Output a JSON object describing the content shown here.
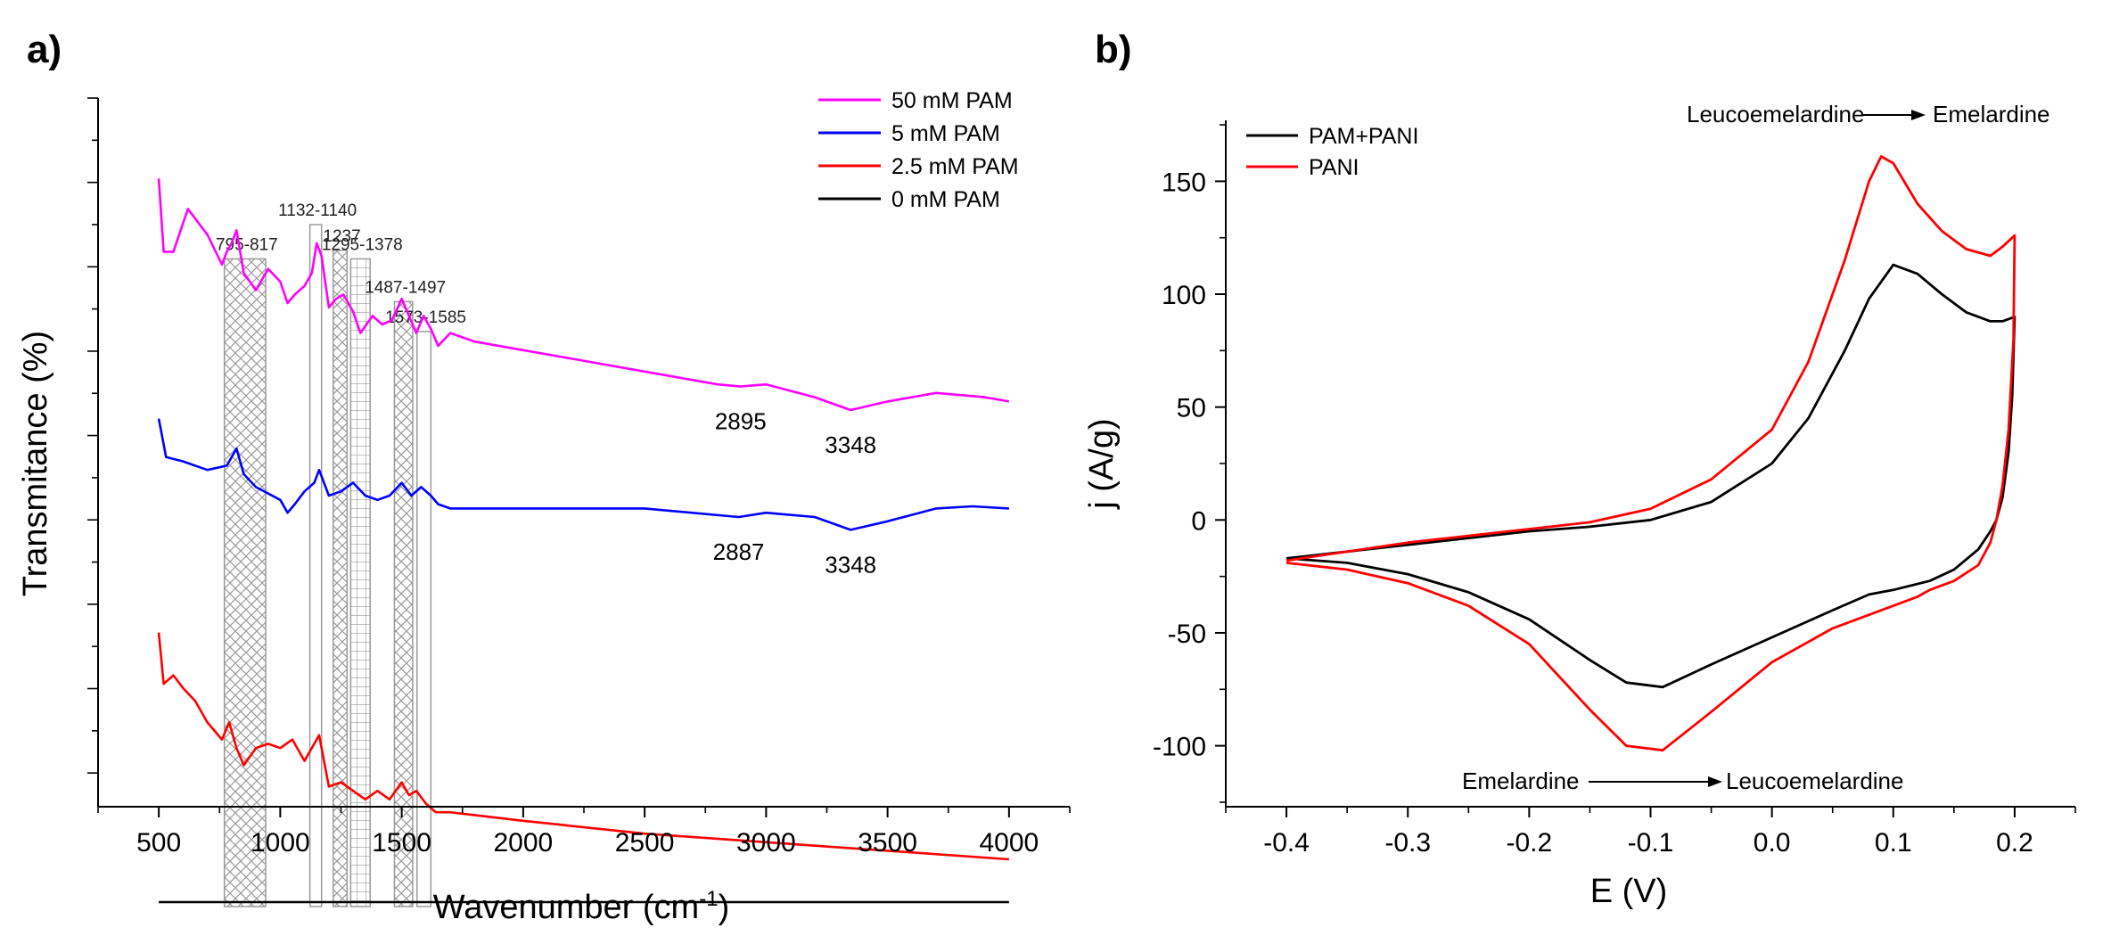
{
  "chart_data": [
    {
      "panel_label": "a)",
      "type": "line",
      "title": "",
      "xlabel": "Wavenumber (cm",
      "xlabel_sup": "-1",
      "xlabel_end": ")",
      "ylabel": "Transmitance (%)",
      "xlim": [
        250,
        4250
      ],
      "xticks": [
        500,
        1000,
        1500,
        2000,
        2500,
        3000,
        3500,
        4000
      ],
      "ytick_labels_shown": false,
      "grid": false,
      "legend": {
        "placement": "top-right",
        "entries": [
          {
            "label": "50 mM PAM",
            "color": "#ff00ff"
          },
          {
            "label": "5 mM PAM",
            "color": "#0000ff"
          },
          {
            "label": "2.5 mM PAM",
            "color": "#ff0000"
          },
          {
            "label": "0 mM PAM",
            "color": "#000000"
          }
        ]
      },
      "series": [
        {
          "name": "50 mM PAM",
          "color": "#ff00ff",
          "offset_pct": 0,
          "points": [
            [
              500,
              5.9
            ],
            [
              520,
              23
            ],
            [
              560,
              23
            ],
            [
              620,
              13
            ],
            [
              700,
              19
            ],
            [
              760,
              26
            ],
            [
              780,
              23
            ],
            [
              800,
              21
            ],
            [
              820,
              18
            ],
            [
              850,
              28
            ],
            [
              900,
              32
            ],
            [
              950,
              27
            ],
            [
              1000,
              30
            ],
            [
              1030,
              35
            ],
            [
              1060,
              33
            ],
            [
              1100,
              31
            ],
            [
              1130,
              28
            ],
            [
              1150,
              21
            ],
            [
              1170,
              24
            ],
            [
              1200,
              36
            ],
            [
              1230,
              34
            ],
            [
              1260,
              33
            ],
            [
              1300,
              37
            ],
            [
              1330,
              42
            ],
            [
              1380,
              38
            ],
            [
              1420,
              40
            ],
            [
              1460,
              39
            ],
            [
              1500,
              34
            ],
            [
              1530,
              38
            ],
            [
              1560,
              42
            ],
            [
              1590,
              38
            ],
            [
              1620,
              41
            ],
            [
              1650,
              45
            ],
            [
              1700,
              42
            ],
            [
              1800,
              44
            ],
            [
              2000,
              46
            ],
            [
              2200,
              48
            ],
            [
              2500,
              51
            ],
            [
              2800,
              54
            ],
            [
              2895,
              54.5
            ],
            [
              3000,
              54
            ],
            [
              3200,
              57
            ],
            [
              3348,
              60
            ],
            [
              3500,
              58
            ],
            [
              3700,
              56
            ],
            [
              3900,
              57
            ],
            [
              4000,
              58
            ]
          ]
        },
        {
          "name": "5 mM PAM",
          "color": "#0000ff",
          "offset_pct": 0,
          "points": [
            [
              500,
              62
            ],
            [
              530,
              71
            ],
            [
              600,
              72
            ],
            [
              700,
              74
            ],
            [
              780,
              73
            ],
            [
              820,
              69
            ],
            [
              850,
              75
            ],
            [
              900,
              78
            ],
            [
              1000,
              81
            ],
            [
              1030,
              84
            ],
            [
              1060,
              82
            ],
            [
              1100,
              79
            ],
            [
              1140,
              77
            ],
            [
              1160,
              74
            ],
            [
              1200,
              80
            ],
            [
              1250,
              79
            ],
            [
              1300,
              77
            ],
            [
              1350,
              80
            ],
            [
              1400,
              81
            ],
            [
              1450,
              80
            ],
            [
              1500,
              77
            ],
            [
              1540,
              80
            ],
            [
              1580,
              78
            ],
            [
              1620,
              80
            ],
            [
              1650,
              82
            ],
            [
              1700,
              83
            ],
            [
              2000,
              83
            ],
            [
              2500,
              83
            ],
            [
              2887,
              85
            ],
            [
              3000,
              84
            ],
            [
              3200,
              85
            ],
            [
              3348,
              88
            ],
            [
              3500,
              86
            ],
            [
              3700,
              83
            ],
            [
              3850,
              82.5
            ],
            [
              4000,
              83
            ]
          ]
        },
        {
          "name": "2.5 mM PAM",
          "color": "#ff0000",
          "offset_pct": 0,
          "points": [
            [
              500,
              112
            ],
            [
              520,
              124
            ],
            [
              560,
              122
            ],
            [
              600,
              125
            ],
            [
              650,
              128
            ],
            [
              700,
              133
            ],
            [
              760,
              137
            ],
            [
              790,
              133
            ],
            [
              820,
              139
            ],
            [
              850,
              143
            ],
            [
              900,
              139
            ],
            [
              950,
              138
            ],
            [
              1000,
              139
            ],
            [
              1050,
              137
            ],
            [
              1100,
              142
            ],
            [
              1140,
              138
            ],
            [
              1160,
              136
            ],
            [
              1200,
              148
            ],
            [
              1250,
              147
            ],
            [
              1300,
              149
            ],
            [
              1350,
              151
            ],
            [
              1400,
              149
            ],
            [
              1450,
              151
            ],
            [
              1500,
              147
            ],
            [
              1530,
              150
            ],
            [
              1560,
              149
            ],
            [
              1600,
              152
            ],
            [
              1640,
              154
            ],
            [
              1700,
              154
            ],
            [
              2000,
              156
            ],
            [
              2500,
              159
            ],
            [
              3000,
              161
            ],
            [
              3500,
              163
            ],
            [
              4000,
              165
            ]
          ]
        },
        {
          "name": "0 mM PAM",
          "color": "#000000",
          "offset_pct": 0,
          "points": [
            [
              500,
              175
            ],
            [
              4000,
              175
            ]
          ]
        }
      ],
      "bands": [
        {
          "label": "795-817",
          "from": 770,
          "to": 940,
          "top": 8,
          "pattern": "crosshatch"
        },
        {
          "label": "1132-1140",
          "from": 1122,
          "to": 1170,
          "top": 0,
          "pattern": "none"
        },
        {
          "label": "1237",
          "from": 1218,
          "to": 1275,
          "top": 6,
          "pattern": "crosshatch"
        },
        {
          "label": "1295-1378",
          "from": 1290,
          "to": 1370,
          "top": 8,
          "pattern": "grid"
        },
        {
          "label": "1487-1497",
          "from": 1470,
          "to": 1545,
          "top": 18,
          "pattern": "crosshatch"
        },
        {
          "label": "1573-1585",
          "from": 1563,
          "to": 1620,
          "top": 25,
          "pattern": "none"
        }
      ],
      "annotations": [
        {
          "text": "2895",
          "x": 2895,
          "series": "50 mM PAM"
        },
        {
          "text": "3348",
          "x": 3348,
          "series": "50 mM PAM"
        },
        {
          "text": "2887",
          "x": 2887,
          "series": "5 mM PAM"
        },
        {
          "text": "3348",
          "x": 3348,
          "series": "5 mM PAM"
        }
      ]
    },
    {
      "panel_label": "b)",
      "type": "line",
      "title": "",
      "xlabel": "E (V)",
      "ylabel": "j (A/g)",
      "xlim": [
        -0.45,
        0.25
      ],
      "ylim": [
        -127,
        177
      ],
      "xticks": [
        -0.4,
        -0.3,
        -0.2,
        -0.1,
        0.0,
        0.1,
        0.2
      ],
      "xtick_labels": [
        "-0.4",
        "-0.3",
        "-0.2",
        "-0.1",
        "0.0",
        "0.1",
        "0.2"
      ],
      "yticks": [
        -100,
        -50,
        0,
        50,
        100,
        150
      ],
      "ytick_labels": [
        "-100",
        "-50",
        "0",
        "50",
        "100",
        "150"
      ],
      "grid": false,
      "legend": {
        "placement": "top-left",
        "entries": [
          {
            "label": "PAM+PANI",
            "color": "#000000"
          },
          {
            "label": "PANI",
            "color": "#ff0000"
          }
        ]
      },
      "series": [
        {
          "name": "PAM+PANI",
          "color": "#000000",
          "points": [
            [
              -0.4,
              -17
            ],
            [
              -0.35,
              -14
            ],
            [
              -0.3,
              -11
            ],
            [
              -0.25,
              -8
            ],
            [
              -0.2,
              -5
            ],
            [
              -0.15,
              -3
            ],
            [
              -0.1,
              0
            ],
            [
              -0.05,
              8
            ],
            [
              0.0,
              25
            ],
            [
              0.03,
              45
            ],
            [
              0.06,
              75
            ],
            [
              0.08,
              98
            ],
            [
              0.1,
              113
            ],
            [
              0.12,
              109
            ],
            [
              0.14,
              100
            ],
            [
              0.16,
              92
            ],
            [
              0.18,
              88
            ],
            [
              0.19,
              88
            ],
            [
              0.2,
              90
            ],
            [
              0.198,
              55
            ],
            [
              0.195,
              30
            ],
            [
              0.19,
              10
            ],
            [
              0.185,
              0
            ],
            [
              0.18,
              -5
            ],
            [
              0.17,
              -13
            ],
            [
              0.15,
              -22
            ],
            [
              0.13,
              -27
            ],
            [
              0.1,
              -31
            ],
            [
              0.08,
              -33
            ],
            [
              0.05,
              -40
            ],
            [
              0.0,
              -52
            ],
            [
              -0.05,
              -64
            ],
            [
              -0.09,
              -74
            ],
            [
              -0.12,
              -72
            ],
            [
              -0.15,
              -62
            ],
            [
              -0.2,
              -44
            ],
            [
              -0.25,
              -32
            ],
            [
              -0.3,
              -24
            ],
            [
              -0.35,
              -19
            ],
            [
              -0.4,
              -17
            ]
          ]
        },
        {
          "name": "PANI",
          "color": "#ff0000",
          "points": [
            [
              -0.4,
              -18
            ],
            [
              -0.35,
              -14
            ],
            [
              -0.3,
              -10
            ],
            [
              -0.25,
              -7
            ],
            [
              -0.2,
              -4
            ],
            [
              -0.15,
              -1
            ],
            [
              -0.1,
              5
            ],
            [
              -0.05,
              18
            ],
            [
              0.0,
              40
            ],
            [
              0.03,
              70
            ],
            [
              0.06,
              115
            ],
            [
              0.08,
              150
            ],
            [
              0.09,
              161
            ],
            [
              0.1,
              158
            ],
            [
              0.12,
              140
            ],
            [
              0.14,
              128
            ],
            [
              0.16,
              120
            ],
            [
              0.18,
              117
            ],
            [
              0.19,
              121
            ],
            [
              0.2,
              126
            ],
            [
              0.199,
              80
            ],
            [
              0.195,
              40
            ],
            [
              0.19,
              15
            ],
            [
              0.185,
              0
            ],
            [
              0.18,
              -10
            ],
            [
              0.17,
              -20
            ],
            [
              0.15,
              -27
            ],
            [
              0.13,
              -31
            ],
            [
              0.12,
              -34
            ],
            [
              0.1,
              -38
            ],
            [
              0.05,
              -48
            ],
            [
              0.0,
              -63
            ],
            [
              -0.05,
              -85
            ],
            [
              -0.09,
              -102
            ],
            [
              -0.12,
              -100
            ],
            [
              -0.15,
              -84
            ],
            [
              -0.2,
              -55
            ],
            [
              -0.25,
              -38
            ],
            [
              -0.3,
              -28
            ],
            [
              -0.35,
              -22
            ],
            [
              -0.4,
              -19
            ]
          ]
        }
      ],
      "annotations": [
        {
          "text_left": "Leucoemelardine",
          "text_right": "Emelardine",
          "placement": "top-right"
        },
        {
          "text_left": "Emelardine",
          "text_right": "Leucoemelardine",
          "placement": "bottom-center"
        }
      ]
    }
  ]
}
